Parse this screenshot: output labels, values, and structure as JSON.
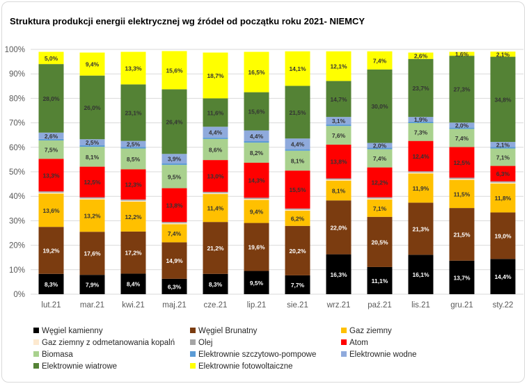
{
  "chart_data": {
    "type": "bar",
    "stacked": true,
    "percent": true,
    "title": "Struktura produkcji energii elektrycznej wg źródeł od początku roku 2021- NIEMCY",
    "categories": [
      "lut.21",
      "mar.21",
      "kwi.21",
      "maj.21",
      "cze.21",
      "lip.21",
      "sie.21",
      "wrz.21",
      "paź.21",
      "lis.21",
      "gru.21",
      "sty.22"
    ],
    "y_ticks": [
      "0%",
      "10%",
      "20%",
      "30%",
      "40%",
      "50%",
      "60%",
      "70%",
      "80%",
      "90%",
      "100%"
    ],
    "ylim": [
      0,
      100
    ],
    "grid": true,
    "legend_position": "bottom",
    "series": [
      {
        "name": "Węgiel kamienny",
        "color": "#000000",
        "label_color": "#ffffff",
        "values": [
          8.3,
          7.9,
          8.4,
          6.3,
          8.3,
          9.5,
          7.7,
          16.3,
          11.1,
          16.1,
          13.7,
          14.4
        ],
        "labels": [
          "8,3%",
          "7,9%",
          "8,4%",
          "6,3%",
          "8,3%",
          "9,5%",
          "7,7%",
          "16,3%",
          "11,1%",
          "16,1%",
          "13,7%",
          "14,4%"
        ]
      },
      {
        "name": "Węgiel Brunatny",
        "color": "#7b3c10",
        "label_color": "#ffffff",
        "values": [
          19.2,
          17.6,
          17.2,
          14.9,
          21.2,
          19.6,
          20.2,
          22.0,
          20.5,
          21.3,
          21.5,
          19.0
        ],
        "labels": [
          "19,2%",
          "17,6%",
          "17,2%",
          "14,9%",
          "21,2%",
          "19,6%",
          "20,2%",
          "22,0%",
          "20,5%",
          "21,3%",
          "21,5%",
          "19,0%"
        ]
      },
      {
        "name": "Gaz ziemny",
        "color": "#ffc000",
        "label_color": "#333333",
        "values": [
          13.6,
          13.2,
          12.2,
          7.4,
          11.4,
          9.4,
          6.2,
          8.1,
          7.1,
          11.9,
          11.5,
          11.8
        ],
        "labels": [
          "13,6%",
          "13,2%",
          "12,2%",
          "7,4%",
          "11,4%",
          "9,4%",
          "6,2%",
          "8,1%",
          "7,1%",
          "11,9%",
          "11,5%",
          "11,8%"
        ]
      },
      {
        "name": "Gaz ziemny z odmetanowania kopalń",
        "color": "#fde9cf",
        "label_color": "#333333",
        "values": [
          0.4,
          0.4,
          0.4,
          0.4,
          0.4,
          0.4,
          0.4,
          0.4,
          0.4,
          0.4,
          0.4,
          0.4
        ],
        "labels": []
      },
      {
        "name": "Olej",
        "color": "#a5a5a5",
        "label_color": "#333333",
        "values": [
          0.5,
          0.5,
          0.5,
          0.5,
          0.5,
          0.5,
          0.5,
          0.5,
          0.5,
          0.5,
          0.5,
          0.5
        ],
        "labels": []
      },
      {
        "name": "Atom",
        "color": "#ff0000",
        "label_color": "#333333",
        "values": [
          13.3,
          12.5,
          12.3,
          13.8,
          13.0,
          14.3,
          15.5,
          13.8,
          12.2,
          12.4,
          12.5,
          6.3
        ],
        "labels": [
          "13,3%",
          "12,5%",
          "12,3%",
          "13,8%",
          "13,0%",
          "14,3%",
          "15,5%",
          "13,8%",
          "12,2%",
          "12,4%",
          "12,5%",
          "6,3%"
        ]
      },
      {
        "name": "Biomasa",
        "color": "#a9d18e",
        "label_color": "#333333",
        "values": [
          7.5,
          8.1,
          8.5,
          9.5,
          8.6,
          8.2,
          8.1,
          7.6,
          7.4,
          7.3,
          7.4,
          7.1
        ],
        "labels": [
          "7,5%",
          "8,1%",
          "8,5%",
          "9,5%",
          "8,6%",
          "8,2%",
          "8,1%",
          "7,6%",
          "7,4%",
          "7,3%",
          "7,4%",
          "7,1%"
        ]
      },
      {
        "name": "Elektrownie szczytowo-pompowe",
        "color": "#5b9bd5",
        "label_color": "#333333",
        "values": [
          0.6,
          0.6,
          0.6,
          0.6,
          0.6,
          0.6,
          0.6,
          0.6,
          0.6,
          0.6,
          0.6,
          0.6
        ],
        "labels": []
      },
      {
        "name": "Elektrownie wodne",
        "color": "#8faadc",
        "label_color": "#333333",
        "values": [
          2.6,
          2.5,
          2.5,
          3.9,
          4.4,
          4.4,
          4.4,
          3.1,
          2.0,
          1.9,
          2.0,
          2.1
        ],
        "labels": [
          "2,6%",
          "2,5%",
          "2,5%",
          "3,9%",
          "4,4%",
          "4,4%",
          "4,4%",
          "3,1%",
          "2,0%",
          "1,9%",
          "2,0%",
          "2,1%"
        ]
      },
      {
        "name": "Elektrownie wiatrowe",
        "color": "#548235",
        "label_color": "#333333",
        "values": [
          28.0,
          26.0,
          23.1,
          26.4,
          11.6,
          15.6,
          21.5,
          14.7,
          30.0,
          23.7,
          27.3,
          34.8
        ],
        "labels": [
          "28,0%",
          "26,0%",
          "23,1%",
          "26,4%",
          "11,6%",
          "15,6%",
          "21,5%",
          "14,7%",
          "30,0%",
          "23,7%",
          "27,3%",
          "34,8%"
        ]
      },
      {
        "name": "Elektrownie fotowoltaiczne",
        "color": "#ffff00",
        "label_color": "#333333",
        "values": [
          5.0,
          9.4,
          13.3,
          15.6,
          18.7,
          16.5,
          14.1,
          12.1,
          7.4,
          2.6,
          1.6,
          2.1
        ],
        "labels": [
          "5,0%",
          "9,4%",
          "13,3%",
          "15,6%",
          "18,7%",
          "16,5%",
          "14,1%",
          "12,1%",
          "7,4%",
          "2,6%",
          "1,6%",
          "2,1%"
        ]
      }
    ]
  }
}
